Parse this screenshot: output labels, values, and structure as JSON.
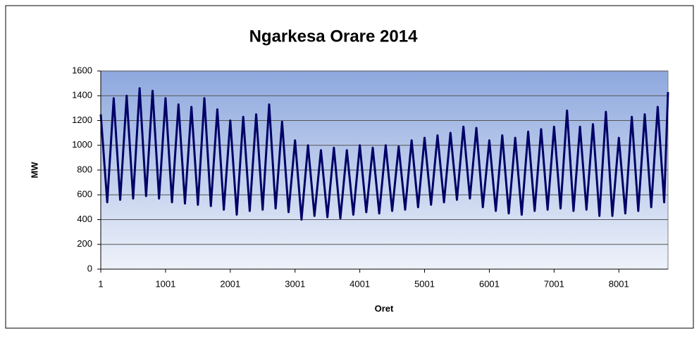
{
  "chart_data": {
    "type": "line",
    "title": "Ngarkesa  Orare  2014",
    "x_label": "Oret",
    "y_label": "MW",
    "x": [
      1,
      101,
      201,
      301,
      401,
      501,
      601,
      701,
      801,
      901,
      1001,
      1101,
      1201,
      1301,
      1401,
      1501,
      1601,
      1701,
      1801,
      1901,
      2001,
      2101,
      2201,
      2301,
      2401,
      2501,
      2601,
      2701,
      2801,
      2901,
      3001,
      3101,
      3201,
      3301,
      3401,
      3501,
      3601,
      3701,
      3801,
      3901,
      4001,
      4101,
      4201,
      4301,
      4401,
      4501,
      4601,
      4701,
      4801,
      4901,
      5001,
      5101,
      5201,
      5301,
      5401,
      5501,
      5601,
      5701,
      5801,
      5901,
      6001,
      6101,
      6201,
      6301,
      6401,
      6501,
      6601,
      6701,
      6801,
      6901,
      7001,
      7101,
      7201,
      7301,
      7401,
      7501,
      7601,
      7701,
      7801,
      7901,
      8001,
      8101,
      8201,
      8301,
      8401,
      8501,
      8601,
      8701,
      8760
    ],
    "series": [
      {
        "name": "MW",
        "color": "#000066",
        "values": [
          1250,
          540,
          1380,
          560,
          1400,
          570,
          1460,
          590,
          1440,
          570,
          1380,
          540,
          1330,
          530,
          1310,
          520,
          1380,
          510,
          1290,
          480,
          1200,
          440,
          1230,
          470,
          1250,
          480,
          1330,
          490,
          1190,
          460,
          1040,
          400,
          1000,
          430,
          960,
          420,
          980,
          410,
          960,
          440,
          1000,
          460,
          980,
          450,
          1000,
          470,
          990,
          480,
          1040,
          500,
          1060,
          520,
          1080,
          540,
          1100,
          560,
          1150,
          570,
          1140,
          500,
          1040,
          470,
          1080,
          450,
          1060,
          440,
          1110,
          470,
          1130,
          480,
          1150,
          490,
          1280,
          470,
          1150,
          480,
          1170,
          430,
          1270,
          430,
          1060,
          450,
          1230,
          470,
          1250,
          500,
          1310,
          540,
          1430
        ]
      }
    ],
    "xlim": [
      1,
      8760
    ],
    "xticks": [
      1,
      1001,
      2001,
      3001,
      4001,
      5001,
      6001,
      7001,
      8001
    ],
    "ylim": [
      0,
      1600
    ],
    "yticks": [
      0,
      200,
      400,
      600,
      800,
      1000,
      1200,
      1400,
      1600
    ],
    "grid": true,
    "legend": false
  }
}
